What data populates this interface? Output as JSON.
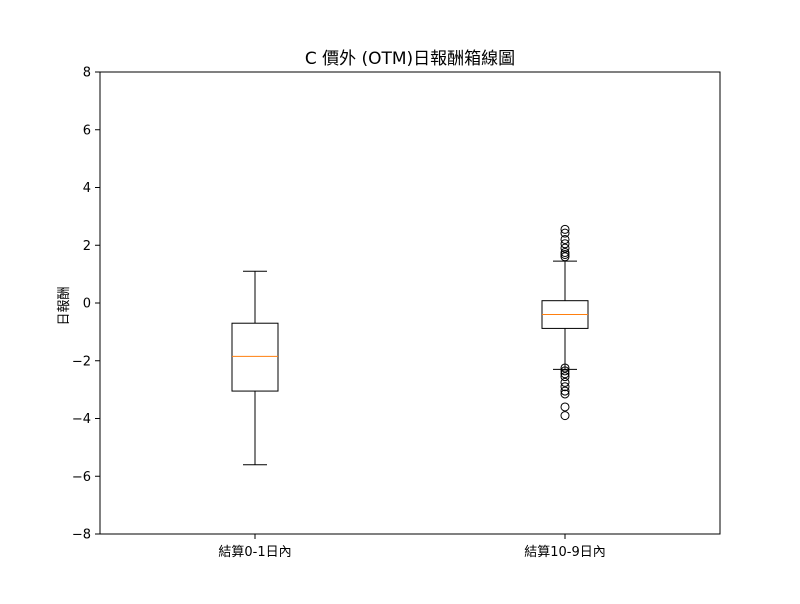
{
  "chart_data": {
    "type": "box",
    "title": "C 價外 (OTM)日報酬箱線圖",
    "xlabel": "",
    "ylabel": "日報酬",
    "ylim": [
      -8,
      8
    ],
    "yticks": [
      -8,
      -6,
      -4,
      -2,
      0,
      2,
      4,
      6,
      8
    ],
    "ytick_labels": [
      "−8",
      "−6",
      "−4",
      "−2",
      "0",
      "2",
      "4",
      "6",
      "8"
    ],
    "grid": false,
    "colors": {
      "box": "#000000",
      "median": "#ff7f0e",
      "flier": "#000000"
    },
    "categories": [
      "結算0-1日內",
      "結算10-9日內"
    ],
    "boxes": [
      {
        "label": "結算0-1日內",
        "whisker_low": -5.6,
        "q1": -3.05,
        "median": -1.85,
        "q3": -0.7,
        "whisker_high": 1.1,
        "fliers": []
      },
      {
        "label": "結算10-9日內",
        "whisker_low": -2.3,
        "q1": -0.88,
        "median": -0.4,
        "q3": 0.08,
        "whisker_high": 1.45,
        "fliers": [
          2.55,
          2.42,
          2.2,
          2.05,
          1.9,
          1.75,
          1.68,
          1.6,
          -2.25,
          -2.35,
          -2.45,
          -2.55,
          -2.75,
          -2.9,
          -3.05,
          -3.15,
          -3.6,
          -3.9
        ]
      }
    ]
  }
}
